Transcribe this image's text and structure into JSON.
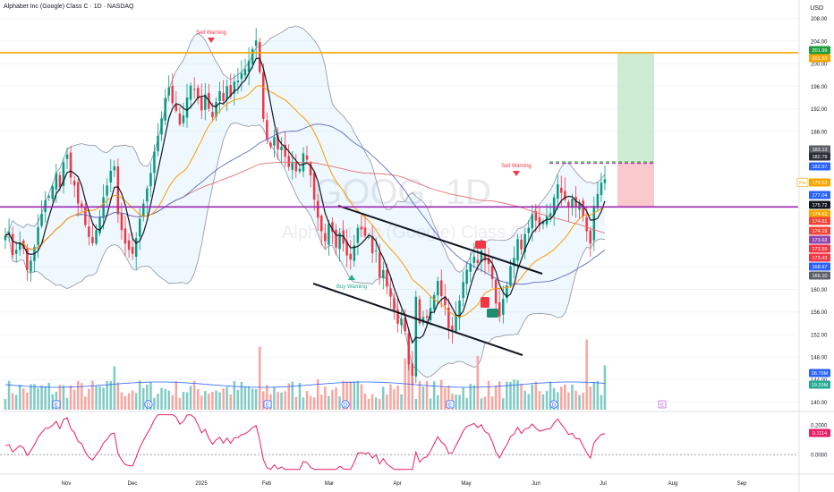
{
  "header": {
    "title": "Alphabet Inc (Google) Class C · 1D · NASDAQ",
    "currency": "USD"
  },
  "watermark": {
    "symbol": "GOOG, 1D",
    "name": "Alphabet Inc (Google) Class C"
  },
  "chart_data": {
    "type": "candlestick",
    "ticker": "GOOG",
    "timeframe": "1D",
    "exchange": "NASDAQ",
    "yaxis": {
      "range": [
        139,
        210
      ],
      "ticks": [
        208.0,
        204.0,
        200.0,
        196.0,
        192.0,
        188.0,
        164.0,
        160.0,
        156.0,
        152.0,
        148.0,
        144.0,
        140.0
      ]
    },
    "xaxis": {
      "ticks": [
        "Nov",
        "Dec",
        "2025",
        "Feb",
        "Mar",
        "Apr",
        "May",
        "Jun",
        "Jul",
        "Aug",
        "Sep"
      ]
    },
    "price_labels": [
      {
        "value": "201.99",
        "color": "#1e9e3a"
      },
      {
        "value": "201.93",
        "color": "#f7a600"
      },
      {
        "value": "183.13",
        "color": "#5d606b"
      },
      {
        "value": "182.79",
        "color": "#2a2e39"
      },
      {
        "value": "182.57",
        "color": "#2962ff"
      },
      {
        "value": "179.53",
        "color": "#f7a600",
        "tag": "Pre"
      },
      {
        "value": "177.04",
        "color": "#2962ff"
      },
      {
        "value": "175.72",
        "color": "#131722"
      },
      {
        "value": "174.61",
        "color": "#f7a600"
      },
      {
        "value": "174.61",
        "color": "#f44336"
      },
      {
        "value": "174.19",
        "color": "#f44336"
      },
      {
        "value": "173.63",
        "color": "#8e44ad"
      },
      {
        "value": "173.59",
        "color": "#f23645"
      },
      {
        "value": "173.43",
        "color": "#f23645"
      },
      {
        "value": "168.67",
        "color": "#2962ff"
      },
      {
        "value": "166.10",
        "color": "#5d606b"
      },
      {
        "value": "28.79M",
        "color": "#2962ff"
      },
      {
        "value": "19.33M",
        "color": "#22ab94"
      }
    ],
    "annotations": [
      {
        "text": "Sell Warning",
        "date": "2025-01-14",
        "marker": "down"
      },
      {
        "text": "Sell Warning",
        "date": "2025-05-22",
        "marker": "down"
      },
      {
        "text": "Buy Warning",
        "date": "2025-03-13",
        "marker": "up"
      }
    ],
    "horizontal_lines": [
      {
        "value": 201.93,
        "color": "#f7a600"
      },
      {
        "value": 174.61,
        "color": "#9c27b0"
      }
    ],
    "position_tool": {
      "entry": 174.61,
      "target": 201.93,
      "stop": 182.57,
      "start": "2025-07-08",
      "end": "2025-07-22"
    },
    "event_markers": [
      "E",
      "D",
      "E",
      "D",
      "E",
      "D",
      "E"
    ],
    "oscillator": {
      "ticks": [
        "0.2000",
        "0.0000"
      ],
      "last_label": "0.1114",
      "range": [
        -0.12,
        0.28
      ]
    },
    "close_series": [
      169.5,
      170.2,
      166.1,
      167.0,
      168.3,
      167.2,
      163.4,
      165.1,
      167.5,
      171.0,
      173.4,
      175.8,
      176.5,
      178.3,
      180.6,
      178.1,
      182.5,
      183.9,
      179.8,
      178.4,
      175.2,
      174.5,
      171.4,
      169.3,
      168.2,
      170.5,
      172.9,
      176.3,
      178.4,
      181.0,
      181.8,
      173.3,
      170.5,
      168.1,
      167.0,
      166.3,
      169.1,
      172.5,
      175.2,
      177.9,
      180.6,
      184.4,
      187.2,
      190.3,
      193.9,
      195.8,
      193.0,
      191.6,
      189.2,
      190.8,
      194.0,
      196.1,
      195.4,
      193.8,
      191.7,
      194.5,
      192.0,
      190.5,
      193.2,
      195.1,
      193.4,
      196.0,
      194.2,
      196.8,
      197.0,
      198.3,
      199.0,
      200.5,
      202.6,
      204.1,
      198.5,
      190.2,
      186.5,
      185.3,
      187.0,
      184.8,
      185.3,
      183.5,
      181.7,
      182.6,
      180.9,
      181.4,
      184.1,
      183.0,
      180.2,
      175.9,
      172.7,
      170.3,
      168.5,
      171.6,
      170.2,
      167.4,
      170.0,
      168.1,
      166.0,
      165.3,
      167.8,
      170.9,
      170.6,
      169.5,
      169.3,
      166.4,
      166.9,
      162.1,
      163.4,
      160.5,
      158.7,
      156.3,
      153.9,
      154.8,
      152.6,
      146.7,
      144.7,
      158.7,
      154.0,
      155.1,
      155.0,
      156.7,
      159.0,
      161.5,
      158.8,
      157.2,
      153.1,
      152.8,
      155.4,
      158.0,
      161.3,
      163.5,
      164.6,
      165.8,
      164.7,
      166.9,
      165.1,
      164.5,
      161.8,
      157.5,
      155.2,
      158.3,
      160.7,
      164.1,
      165.6,
      168.9,
      167.1,
      169.8,
      170.9,
      173.3,
      172.2,
      171.4,
      172.1,
      173.0,
      173.5,
      176.3,
      178.6,
      177.1,
      175.9,
      174.5,
      176.0,
      174.7,
      175.4,
      172.9,
      170.3,
      168.1,
      174.8,
      176.9,
      178.9,
      179.5
    ],
    "annotation_dates": [
      "2025-01-14",
      "2025-05-22",
      "2025-03-13"
    ]
  }
}
